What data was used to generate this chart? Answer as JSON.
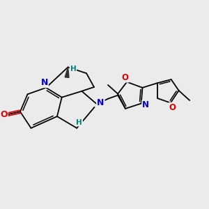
{
  "background_color": "#ebebeb",
  "atom_colors": {
    "N": "#0000cc",
    "O": "#dd0000",
    "H_stereo": "#008080"
  },
  "figsize": [
    3.0,
    3.0
  ],
  "dpi": 100
}
